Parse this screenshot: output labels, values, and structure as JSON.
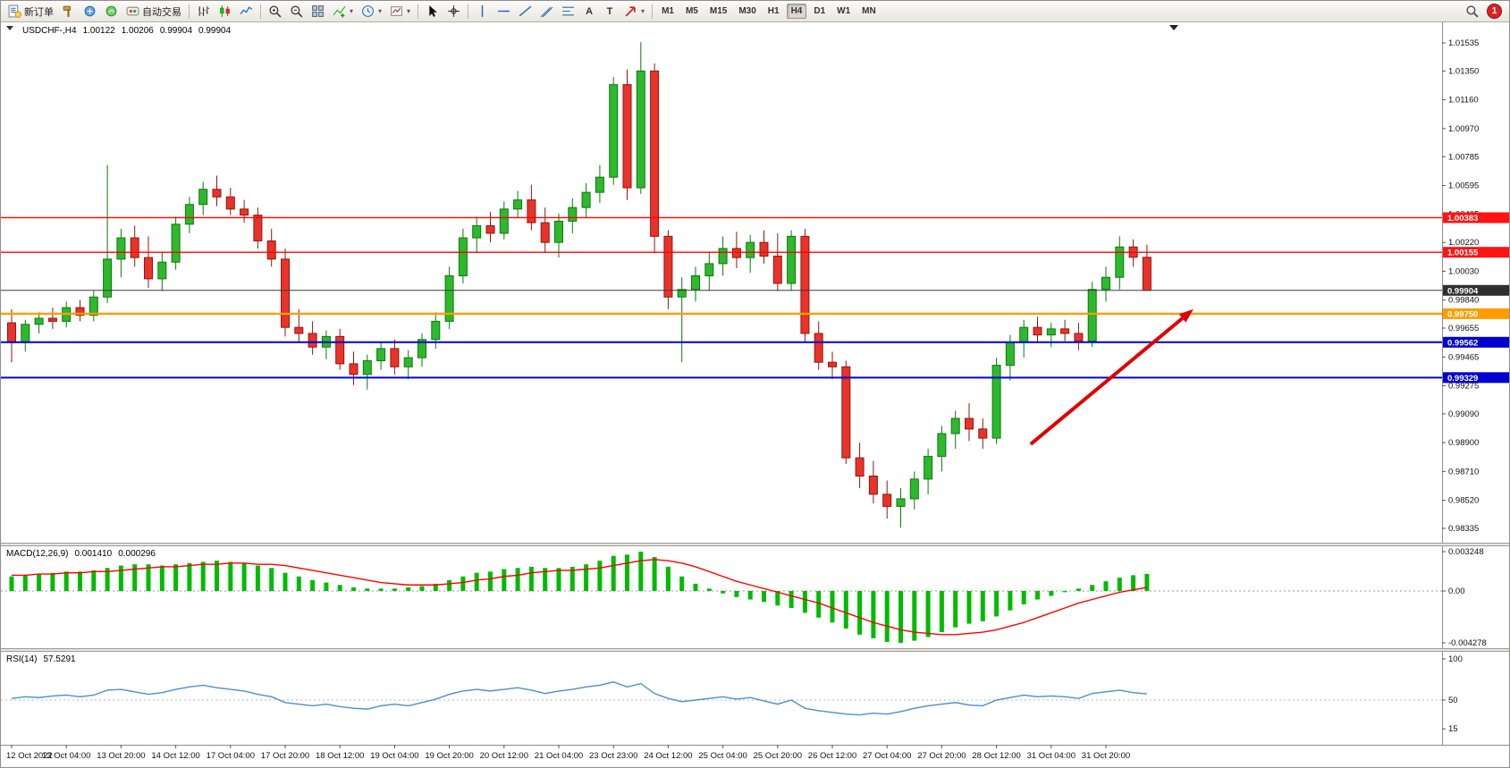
{
  "toolbar": {
    "groups": [
      {
        "items": [
          {
            "name": "new-order",
            "icon": "neworder",
            "label": "新订单"
          },
          {
            "name": "chart-tools",
            "icon": "hammer"
          },
          {
            "name": "market-watch",
            "icon": "market"
          },
          {
            "name": "signals",
            "icon": "signals"
          },
          {
            "name": "auto-trading",
            "icon": "autotrading",
            "label": "自动交易"
          }
        ]
      },
      {
        "items": [
          {
            "name": "bar-chart",
            "icon": "bars"
          },
          {
            "name": "candle-chart",
            "icon": "candles"
          },
          {
            "name": "line-chart",
            "icon": "linechart"
          }
        ]
      },
      {
        "items": [
          {
            "name": "zoom-in",
            "icon": "zoomin"
          },
          {
            "name": "zoom-out",
            "icon": "zoomout"
          },
          {
            "name": "tile-windows",
            "icon": "tile"
          },
          {
            "name": "indicators",
            "icon": "indicators",
            "caret": true
          },
          {
            "name": "periods",
            "icon": "clock",
            "caret": true
          },
          {
            "name": "templates",
            "icon": "template",
            "caret": true
          }
        ]
      },
      {
        "items": [
          {
            "name": "cursor",
            "icon": "cursor"
          },
          {
            "name": "crosshair",
            "icon": "crosshair"
          }
        ]
      },
      {
        "items": [
          {
            "name": "vertical-line",
            "icon": "vline"
          },
          {
            "name": "horizontal-line",
            "icon": "hline"
          },
          {
            "name": "trendline",
            "icon": "trend"
          },
          {
            "name": "equidistant-channel",
            "icon": "channel"
          },
          {
            "name": "fibonacci",
            "icon": "fibo"
          },
          {
            "name": "text",
            "glyph": "A"
          },
          {
            "name": "text-label",
            "glyph": "T"
          },
          {
            "name": "arrows",
            "icon": "arrows",
            "caret": true
          }
        ]
      }
    ],
    "timeframes": [
      "M1",
      "M5",
      "M15",
      "M30",
      "H1",
      "H4",
      "D1",
      "W1",
      "MN"
    ],
    "active_timeframe": "H4",
    "notification_count": "1"
  },
  "chart_data": {
    "type": "candlestick",
    "header": {
      "symbol": "USDCHF-,H4",
      "open": "1.00122",
      "high": "1.00206",
      "low": "0.99904",
      "close": "0.99904"
    },
    "price_axis": {
      "max": 1.01535,
      "min": 0.98335,
      "ticks": [
        "1.01535",
        "1.01350",
        "1.01160",
        "1.00970",
        "1.00785",
        "1.00595",
        "1.00405",
        "1.00220",
        "1.00030",
        "0.99840",
        "0.99655",
        "0.99465",
        "0.99275",
        "0.99090",
        "0.98900",
        "0.98710",
        "0.98520",
        "0.98335"
      ]
    },
    "time_labels": [
      "12 Oct 2022",
      "13 Oct 04:00",
      "13 Oct 20:00",
      "14 Oct 12:00",
      "17 Oct 04:00",
      "17 Oct 20:00",
      "18 Oct 12:00",
      "19 Oct 04:00",
      "19 Oct 20:00",
      "20 Oct 12:00",
      "21 Oct 04:00",
      "23 Oct 23:00",
      "24 Oct 12:00",
      "25 Oct 04:00",
      "25 Oct 20:00",
      "26 Oct 12:00",
      "27 Oct 04:00",
      "27 Oct 20:00",
      "28 Oct 12:00",
      "31 Oct 04:00",
      "31 Oct 20:00"
    ],
    "label_every": 4,
    "candles": [
      [
        0.9969,
        0.9978,
        0.9943,
        0.9956
      ],
      [
        0.9956,
        0.9971,
        0.995,
        0.9968
      ],
      [
        0.9968,
        0.9976,
        0.9962,
        0.9972
      ],
      [
        0.9972,
        0.9979,
        0.9965,
        0.997
      ],
      [
        0.997,
        0.9983,
        0.9966,
        0.9979
      ],
      [
        0.9979,
        0.9984,
        0.997,
        0.9974
      ],
      [
        0.9974,
        0.999,
        0.997,
        0.9986
      ],
      [
        0.9986,
        1.0073,
        0.9982,
        1.0011
      ],
      [
        1.0011,
        1.0031,
        0.9999,
        1.0025
      ],
      [
        1.0025,
        1.0033,
        1.0006,
        1.0012
      ],
      [
        1.0012,
        1.0026,
        0.9992,
        0.9998
      ],
      [
        0.9998,
        1.0016,
        0.999,
        1.0009
      ],
      [
        1.0009,
        1.0039,
        1.0004,
        1.0034
      ],
      [
        1.0034,
        1.0052,
        1.0028,
        1.0047
      ],
      [
        1.0047,
        1.0062,
        1.004,
        1.0057
      ],
      [
        1.0057,
        1.0066,
        1.0046,
        1.0052
      ],
      [
        1.0052,
        1.0058,
        1.004,
        1.0044
      ],
      [
        1.0044,
        1.005,
        1.0035,
        1.004
      ],
      [
        1.004,
        1.0045,
        1.0018,
        1.0023
      ],
      [
        1.0023,
        1.0031,
        1.0006,
        1.0011
      ],
      [
        1.0011,
        1.0018,
        0.996,
        0.9966
      ],
      [
        0.9966,
        0.9978,
        0.9956,
        0.9962
      ],
      [
        0.9962,
        0.997,
        0.9948,
        0.9953
      ],
      [
        0.9953,
        0.9964,
        0.9945,
        0.996
      ],
      [
        0.996,
        0.9965,
        0.9938,
        0.9942
      ],
      [
        0.9942,
        0.995,
        0.9928,
        0.9935
      ],
      [
        0.9935,
        0.9948,
        0.9925,
        0.9944
      ],
      [
        0.9944,
        0.9956,
        0.9938,
        0.9952
      ],
      [
        0.9952,
        0.9958,
        0.9935,
        0.994
      ],
      [
        0.994,
        0.9951,
        0.9932,
        0.9946
      ],
      [
        0.9946,
        0.9962,
        0.994,
        0.9958
      ],
      [
        0.9958,
        0.9976,
        0.9952,
        0.997
      ],
      [
        0.997,
        1.0006,
        0.9965,
        1.0
      ],
      [
        1.0,
        1.0031,
        0.9995,
        1.0025
      ],
      [
        1.0025,
        1.0039,
        1.0015,
        1.0033
      ],
      [
        1.0033,
        1.0042,
        1.0022,
        1.0028
      ],
      [
        1.0028,
        1.0049,
        1.0024,
        1.0044
      ],
      [
        1.0044,
        1.0056,
        1.0038,
        1.005
      ],
      [
        1.005,
        1.006,
        1.003,
        1.0035
      ],
      [
        1.0035,
        1.0045,
        1.0015,
        1.0022
      ],
      [
        1.0022,
        1.0041,
        1.0012,
        1.0036
      ],
      [
        1.0036,
        1.0051,
        1.0028,
        1.0045
      ],
      [
        1.0045,
        1.0061,
        1.0038,
        1.0055
      ],
      [
        1.0055,
        1.0073,
        1.0048,
        1.0065
      ],
      [
        1.0065,
        1.0131,
        1.006,
        1.0126
      ],
      [
        1.0126,
        1.0136,
        1.005,
        1.0058
      ],
      [
        1.0058,
        1.0154,
        1.0054,
        1.0135
      ],
      [
        1.0135,
        1.014,
        1.0015,
        1.0026
      ],
      [
        1.0026,
        1.003,
        0.9978,
        0.9986
      ],
      [
        0.9986,
        0.9999,
        0.9943,
        0.9991
      ],
      [
        0.9991,
        1.0006,
        0.9983,
        1.0
      ],
      [
        1.0,
        1.0016,
        0.999,
        1.0008
      ],
      [
        1.0008,
        1.0026,
        1.0,
        1.0018
      ],
      [
        1.0018,
        1.0029,
        1.0005,
        1.0012
      ],
      [
        1.0012,
        1.0027,
        1.0002,
        1.0022
      ],
      [
        1.0022,
        1.003,
        1.0008,
        1.0013
      ],
      [
        1.0013,
        1.0028,
        0.999,
        0.9995
      ],
      [
        0.9995,
        1.003,
        0.999,
        1.0026
      ],
      [
        1.0026,
        1.0031,
        0.9956,
        0.9962
      ],
      [
        0.9962,
        0.997,
        0.9938,
        0.9943
      ],
      [
        0.9943,
        0.995,
        0.9932,
        0.994
      ],
      [
        0.994,
        0.9944,
        0.9876,
        0.988
      ],
      [
        0.988,
        0.989,
        0.986,
        0.9868
      ],
      [
        0.9868,
        0.9878,
        0.985,
        0.9856
      ],
      [
        0.9856,
        0.9865,
        0.984,
        0.9848
      ],
      [
        0.9848,
        0.986,
        0.9834,
        0.9853
      ],
      [
        0.9853,
        0.9871,
        0.9846,
        0.9866
      ],
      [
        0.9866,
        0.9886,
        0.9856,
        0.9881
      ],
      [
        0.9881,
        0.9901,
        0.9871,
        0.9896
      ],
      [
        0.9896,
        0.9911,
        0.9886,
        0.9906
      ],
      [
        0.9906,
        0.9916,
        0.9891,
        0.9899
      ],
      [
        0.9899,
        0.9906,
        0.9886,
        0.9893
      ],
      [
        0.9893,
        0.9946,
        0.9889,
        0.9941
      ],
      [
        0.9941,
        0.9961,
        0.9931,
        0.9956
      ],
      [
        0.9956,
        0.9971,
        0.9946,
        0.9966
      ],
      [
        0.9966,
        0.9973,
        0.9956,
        0.9961
      ],
      [
        0.9961,
        0.9969,
        0.9953,
        0.9965
      ],
      [
        0.9965,
        0.9971,
        0.9957,
        0.9962
      ],
      [
        0.9962,
        0.9969,
        0.9951,
        0.9957
      ],
      [
        0.9957,
        0.9996,
        0.9953,
        0.9991
      ],
      [
        0.9991,
        1.0006,
        0.9983,
        0.9999
      ],
      [
        0.9999,
        1.0026,
        0.9991,
        1.0019
      ],
      [
        1.0019,
        1.0024,
        1.0006,
        1.00122
      ],
      [
        1.00122,
        1.00206,
        0.99904,
        0.99904
      ]
    ],
    "hlines": [
      {
        "price": 1.00383,
        "label": "1.00383",
        "color": "#ff0000",
        "width": 1.4,
        "box": "#ff1313"
      },
      {
        "price": 1.00155,
        "label": "1.00155",
        "color": "#ff0000",
        "width": 1.4,
        "box": "#ff1313"
      },
      {
        "price": 0.99904,
        "label": "0.99904",
        "color": "#3a3a3a",
        "width": 1,
        "box": "#2f2f2f",
        "current": true
      },
      {
        "price": 0.9975,
        "label": "0.99750",
        "color": "#ff9d00",
        "width": 2.4,
        "box": "#ff9d00"
      },
      {
        "price": 0.99562,
        "label": "0.99562",
        "color": "#0000e0",
        "width": 2,
        "box": "#0000d0"
      },
      {
        "price": 0.99329,
        "label": "0.99329",
        "color": "#0000e0",
        "width": 2,
        "box": "#0000d0"
      }
    ],
    "arrow": {
      "from_t": 74.5,
      "from_p": 0.9889,
      "to_t": 86.4,
      "to_p": 0.9978,
      "color": "#e10000"
    },
    "indicators": {
      "macd": {
        "label": "MACD(12,26,9)",
        "value_main": "0.001410",
        "value_signal": "0.000296",
        "scale": {
          "max": "0.003248",
          "zero": "0.00",
          "min": "-0.004278"
        },
        "max": 0.003248,
        "min": -0.004278,
        "histogram": [
          0.0012,
          0.0013,
          0.0014,
          0.0015,
          0.0016,
          0.0016,
          0.0017,
          0.0019,
          0.0021,
          0.0022,
          0.0022,
          0.0021,
          0.0022,
          0.0023,
          0.0024,
          0.0025,
          0.0024,
          0.0023,
          0.0021,
          0.0019,
          0.0015,
          0.0012,
          0.0009,
          0.0007,
          0.0005,
          0.0003,
          0.0002,
          0.0002,
          0.0002,
          0.0003,
          0.0004,
          0.0006,
          0.0009,
          0.0012,
          0.0015,
          0.0016,
          0.0018,
          0.0019,
          0.002,
          0.0019,
          0.0019,
          0.002,
          0.0022,
          0.0025,
          0.0029,
          0.003,
          0.003248,
          0.0028,
          0.002,
          0.0012,
          0.0006,
          0.0002,
          -0.0002,
          -0.0005,
          -0.0007,
          -0.0009,
          -0.0012,
          -0.0014,
          -0.0018,
          -0.0022,
          -0.0026,
          -0.0031,
          -0.0036,
          -0.0039,
          -0.0042,
          -0.004278,
          -0.0041,
          -0.0038,
          -0.0034,
          -0.003,
          -0.0027,
          -0.0025,
          -0.0021,
          -0.0016,
          -0.0011,
          -0.0007,
          -0.0004,
          -0.0001,
          0.0002,
          0.0005,
          0.0008,
          0.0011,
          0.0013,
          0.00141
        ],
        "signal": [
          0.0013,
          0.0013,
          0.0014,
          0.0014,
          0.0015,
          0.0015,
          0.0016,
          0.0016,
          0.0017,
          0.0018,
          0.0019,
          0.002,
          0.002,
          0.0021,
          0.0022,
          0.0022,
          0.0023,
          0.0023,
          0.0022,
          0.0022,
          0.0021,
          0.0019,
          0.0017,
          0.0015,
          0.0013,
          0.0011,
          0.0009,
          0.0007,
          0.0006,
          0.0005,
          0.0005,
          0.0005,
          0.0006,
          0.0007,
          0.0009,
          0.001,
          0.0012,
          0.0013,
          0.0015,
          0.0016,
          0.0017,
          0.0017,
          0.0018,
          0.0019,
          0.0021,
          0.0023,
          0.0025,
          0.0026,
          0.0025,
          0.0023,
          0.002,
          0.0016,
          0.0012,
          0.0008,
          0.0005,
          0.0002,
          -0.0001,
          -0.0004,
          -0.0007,
          -0.001,
          -0.0014,
          -0.0018,
          -0.0022,
          -0.0026,
          -0.0029,
          -0.0032,
          -0.0034,
          -0.0035,
          -0.0036,
          -0.0036,
          -0.0035,
          -0.0034,
          -0.0032,
          -0.0029,
          -0.0026,
          -0.0022,
          -0.0018,
          -0.0014,
          -0.001,
          -0.0007,
          -0.0004,
          -0.0001,
          0.0001,
          0.000296
        ]
      },
      "rsi": {
        "label": "RSI(14)",
        "value": "57.5291",
        "scale_labels": [
          "100",
          "50",
          "15"
        ],
        "levels": [
          50
        ],
        "series": [
          52,
          54,
          53,
          55,
          56,
          54,
          56,
          62,
          63,
          60,
          57,
          59,
          63,
          66,
          68,
          65,
          63,
          61,
          57,
          54,
          47,
          45,
          43,
          45,
          42,
          40,
          39,
          43,
          45,
          43,
          47,
          51,
          57,
          61,
          63,
          61,
          63,
          65,
          62,
          58,
          61,
          63,
          66,
          68,
          72,
          66,
          70,
          58,
          52,
          48,
          50,
          52,
          54,
          51,
          53,
          49,
          45,
          50,
          40,
          37,
          35,
          33,
          32,
          34,
          33,
          36,
          40,
          43,
          45,
          47,
          44,
          43,
          50,
          53,
          56,
          54,
          55,
          54,
          52,
          58,
          60,
          62,
          59,
          57.5291
        ]
      }
    },
    "colors": {
      "bull_fill": "#2eb82e",
      "bull_stroke": "#0b7a0b",
      "bear_fill": "#e8332a",
      "bear_stroke": "#8f170f",
      "macd_bar": "#00bb00",
      "macd_signal": "#ff0000",
      "rsi_line": "#4a8fd3",
      "arrow": "#e10000"
    }
  }
}
